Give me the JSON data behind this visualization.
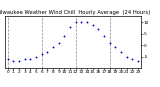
{
  "title": "Milwaukee Weather Wind Chill  Hourly Average  (24 Hours)",
  "title_fontsize": 3.8,
  "hours": [
    0,
    1,
    2,
    3,
    4,
    5,
    6,
    7,
    8,
    9,
    10,
    11,
    12,
    13,
    14,
    15,
    16,
    17,
    18,
    19,
    20,
    21,
    22,
    23
  ],
  "wind_chill": [
    -6,
    -7,
    -7,
    -6,
    -6,
    -5,
    -4,
    -3,
    -1,
    1,
    4,
    8,
    10,
    10,
    10,
    9,
    7,
    4,
    1,
    -1,
    -3,
    -5,
    -6,
    -7
  ],
  "dot_color": "#0000cc",
  "dot_size": 1.8,
  "grid_color": "#888888",
  "bg_color": "#ffffff",
  "plot_bg": "#ffffff",
  "ylim": [
    -10,
    13
  ],
  "yticks": [
    -5,
    0,
    5,
    10
  ],
  "ytick_labels": [
    "-5",
    "0",
    "5",
    "10"
  ],
  "vlines": [
    0,
    6,
    12,
    18
  ],
  "tick_fontsize": 3.2,
  "title_color": "#000000",
  "spine_color": "#000000",
  "spine_lw": 0.5
}
